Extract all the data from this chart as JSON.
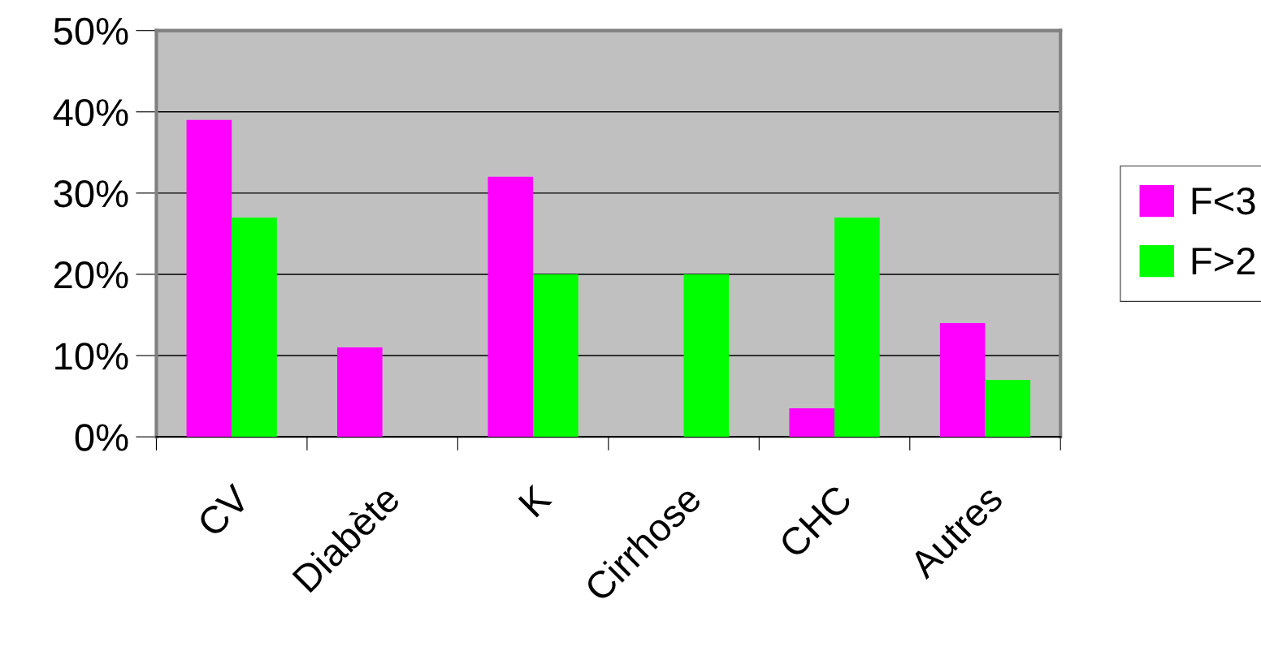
{
  "chart_data": {
    "type": "bar",
    "categories": [
      "CV",
      "Diabète",
      "K",
      "Cirrhose",
      "CHC",
      "Autres"
    ],
    "series": [
      {
        "name": "F<3",
        "color": "#ff00ff",
        "values": [
          39,
          11,
          32,
          null,
          3.5,
          14
        ]
      },
      {
        "name": "F>2",
        "color": "#00ff00",
        "values": [
          27,
          null,
          20,
          20,
          27,
          7
        ]
      }
    ],
    "ylim": [
      0,
      50
    ],
    "yticks": [
      {
        "value": 0,
        "label": "0%"
      },
      {
        "value": 10,
        "label": "10%"
      },
      {
        "value": 20,
        "label": "20%"
      },
      {
        "value": 30,
        "label": "30%"
      },
      {
        "value": 40,
        "label": "40%"
      },
      {
        "value": 50,
        "label": "50%"
      }
    ],
    "grid": "y",
    "legend": "right"
  }
}
